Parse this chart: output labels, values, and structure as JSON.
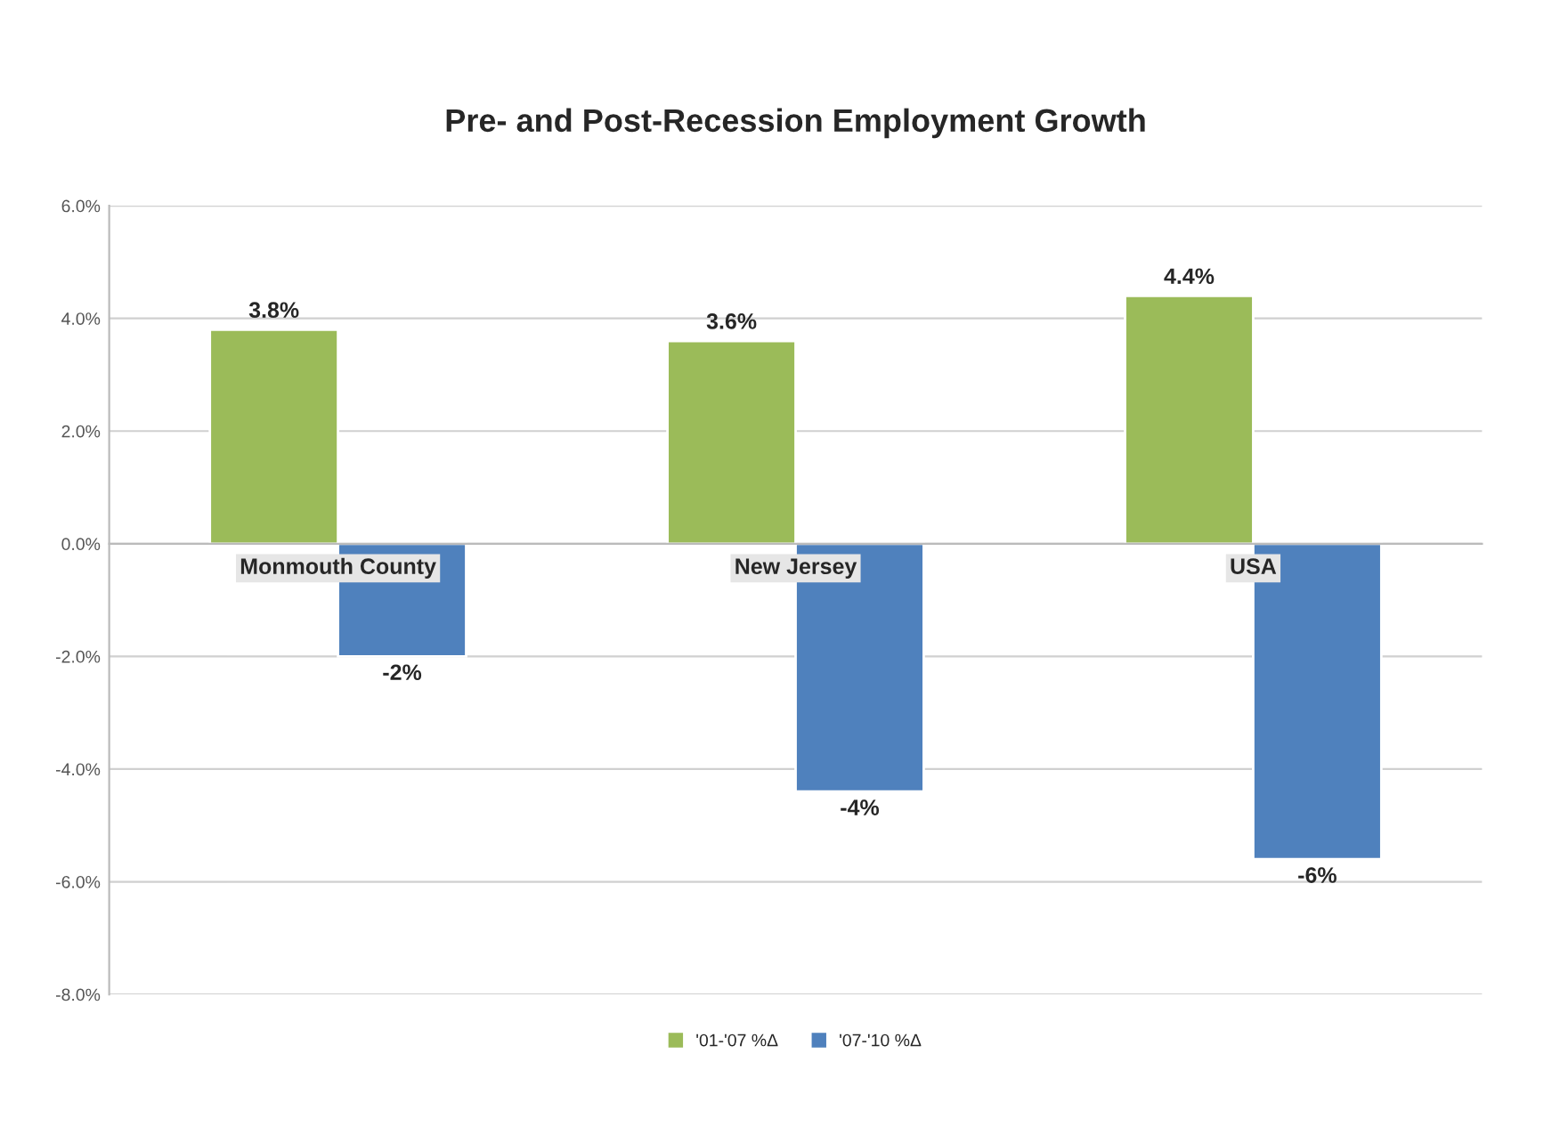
{
  "chart_data": {
    "type": "bar",
    "title": "Pre- and Post-Recession Employment Growth",
    "categories": [
      "Monmouth County",
      "New Jersey",
      "USA"
    ],
    "series": [
      {
        "name": "'01-'07 %Δ",
        "color": "#9bbb59",
        "values": [
          3.8,
          3.6,
          4.4
        ],
        "value_labels": [
          "3.8%",
          "3.6%",
          "4.4%"
        ]
      },
      {
        "name": "'07-'10 %Δ",
        "color": "#4f81bd",
        "values": [
          -2.0,
          -4.4,
          -5.6
        ],
        "value_labels": [
          "-2%",
          "-4%",
          "-6%"
        ]
      }
    ],
    "ylim": [
      -8,
      6
    ],
    "yticks": [
      {
        "value": -8,
        "label": "-8.0%"
      },
      {
        "value": -6,
        "label": "-6.0%"
      },
      {
        "value": -4,
        "label": "-4.0%"
      },
      {
        "value": -2,
        "label": "-2.0%"
      },
      {
        "value": 0,
        "label": "0.0%"
      },
      {
        "value": 2,
        "label": "2.0%"
      },
      {
        "value": 4,
        "label": "4.0%"
      },
      {
        "value": 6,
        "label": "6.0%"
      }
    ],
    "grid": "y",
    "legend": "bottom"
  }
}
